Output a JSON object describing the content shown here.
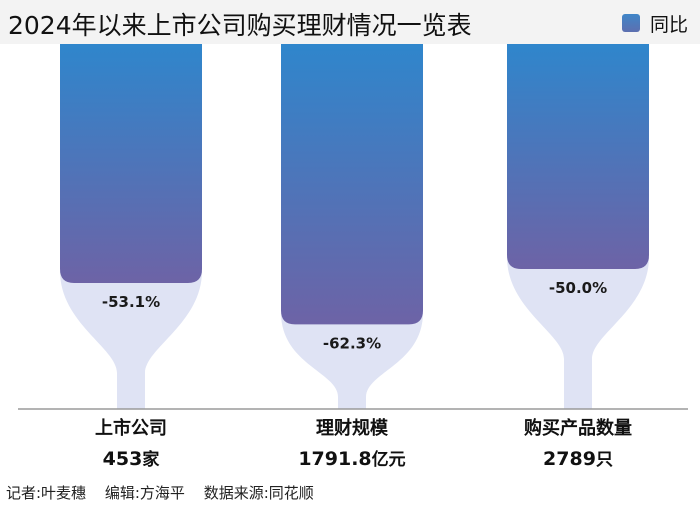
{
  "title": "2024年以来上市公司购买理财情况一览表",
  "legend": {
    "label": "同比"
  },
  "colors": {
    "bar_top": "#2f86cc",
    "bar_bottom": "#6d63a6",
    "flask": "#dfe3f4",
    "header_bg": "#f3f3f3"
  },
  "chart_data": {
    "type": "bar",
    "categories": [
      "上市公司",
      "理财规模",
      "购买产品数量"
    ],
    "series": [
      {
        "name": "同比",
        "values": [
          -53.1,
          -62.3,
          -50.0
        ]
      }
    ],
    "data_labels": [
      "-53.1%",
      "-62.3%",
      "-50.0%"
    ],
    "totals": [
      {
        "value": "453",
        "unit": "家"
      },
      {
        "value": "1791.8",
        "unit": "亿元"
      },
      {
        "value": "2789",
        "unit": "只"
      }
    ],
    "ylim": [
      -100,
      0
    ],
    "grid": false,
    "legend_position": "top-right"
  },
  "footer": {
    "reporter": "记者:叶麦穗",
    "editor": "编辑:方海平",
    "source": "数据来源:同花顺"
  }
}
